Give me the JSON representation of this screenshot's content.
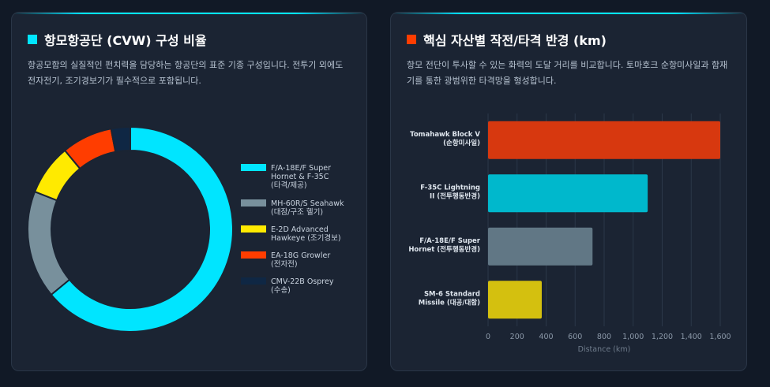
{
  "colors": {
    "cyan": "#00e5ff",
    "gray": "#78909c",
    "yellow": "#ffea00",
    "orange_red": "#ff3d00",
    "navy": "#0f2744",
    "bar_red": "#d7380f",
    "bar_cyan": "#00b8cc",
    "bar_gray": "#617785",
    "bar_yellow": "#d4c00f"
  },
  "left_panel": {
    "title": "항모항공단 (CVW) 구성 비율",
    "description": "항공모함의 실질적인 펀치력을 담당하는 항공단의 표준 기종 구성입니다. 전투기 외에도 전자전기, 조기경보기가 필수적으로 포함됩니다."
  },
  "right_panel": {
    "title": "핵심 자산별 작전/타격 반경 (km)",
    "description": "항모 전단이 투사할 수 있는 화력의 도달 거리를 비교합니다. 토마호크 순항미사일과 함재기를 통한 광범위한 타격망을 형성합니다."
  },
  "chart_data": [
    {
      "type": "pie",
      "variant": "doughnut",
      "legend_position": "right",
      "series": [
        {
          "label_lines": [
            "F/A-18E/F Super",
            "Hornet & F-35C",
            "(타격/제공)"
          ],
          "value": 64,
          "color": "#00e5ff"
        },
        {
          "label_lines": [
            "MH-60R/S Seahawk",
            "(대잠/구조 헬기)"
          ],
          "value": 17,
          "color": "#78909c"
        },
        {
          "label_lines": [
            "E-2D Advanced",
            "Hawkeye (조기경보)"
          ],
          "value": 8,
          "color": "#ffea00"
        },
        {
          "label_lines": [
            "EA-18G Growler",
            "(전자전)"
          ],
          "value": 8,
          "color": "#ff3d00"
        },
        {
          "label_lines": [
            "CMV-22B Osprey",
            "(수송)"
          ],
          "value": 3,
          "color": "#0f2744"
        }
      ]
    },
    {
      "type": "bar",
      "orientation": "horizontal",
      "categories": [
        [
          "Tomahawk Block V",
          "(순항미사일)"
        ],
        [
          "F-35C Lightning",
          "II (전투행동반경)"
        ],
        [
          "F/A-18E/F Super",
          "Hornet (전투행동반경)"
        ],
        [
          "SM-6 Standard",
          "Missile (대공/대함)"
        ]
      ],
      "values": [
        1600,
        1100,
        720,
        370
      ],
      "colors": [
        "#d7380f",
        "#00b8cc",
        "#617785",
        "#d4c00f"
      ],
      "xlabel": "Distance (km)",
      "xlim": [
        0,
        1600
      ],
      "xticks": [
        "0",
        "200",
        "400",
        "600",
        "800",
        "1,000",
        "1,200",
        "1,400",
        "1,600"
      ],
      "grid": true
    }
  ]
}
